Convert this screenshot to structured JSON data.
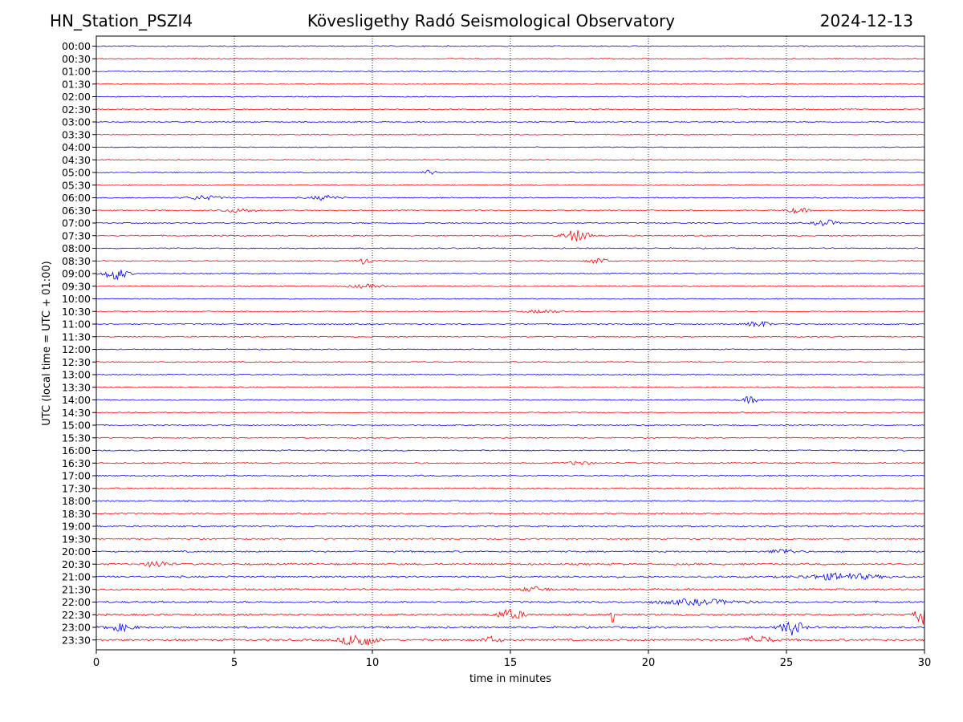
{
  "header": {
    "station": "HN_Station_PSZI4",
    "observatory": "Kövesligethy Radó Seismological Observatory",
    "date": "2024-12-13"
  },
  "chart_data": {
    "type": "line",
    "title": "Kövesligethy Radó Seismological Observatory",
    "xlabel": "time in minutes",
    "ylabel": "UTC (local time = UTC + 01:00)",
    "xlim": [
      0,
      30
    ],
    "x_ticks": [
      "0",
      "5",
      "10",
      "15",
      "20",
      "25",
      "30"
    ],
    "vertical_gridlines_at": [
      5,
      10,
      15,
      20,
      25
    ],
    "grid_style": "dotted",
    "row_colors": [
      "#0000ff",
      "#ff0000"
    ],
    "rows": [
      "00:00",
      "00:30",
      "01:00",
      "01:30",
      "02:00",
      "02:30",
      "03:00",
      "03:30",
      "04:00",
      "04:30",
      "05:00",
      "05:30",
      "06:00",
      "06:30",
      "07:00",
      "07:30",
      "08:00",
      "08:30",
      "09:00",
      "09:30",
      "10:00",
      "10:30",
      "11:00",
      "11:30",
      "12:00",
      "12:30",
      "13:00",
      "13:30",
      "14:00",
      "14:30",
      "15:00",
      "15:30",
      "16:00",
      "16:30",
      "17:00",
      "17:30",
      "18:00",
      "18:30",
      "19:00",
      "19:30",
      "20:00",
      "20:30",
      "21:00",
      "21:30",
      "22:00",
      "22:30",
      "23:00",
      "23:30"
    ],
    "noise_level": [
      0.8,
      0.8,
      0.7,
      0.7,
      0.7,
      0.8,
      0.7,
      0.7,
      0.6,
      0.7,
      0.7,
      0.7,
      0.8,
      0.8,
      0.8,
      0.9,
      0.8,
      0.8,
      0.8,
      0.8,
      0.7,
      0.8,
      0.8,
      0.8,
      0.7,
      0.8,
      0.8,
      0.8,
      0.8,
      0.8,
      0.8,
      0.8,
      0.9,
      0.9,
      1.0,
      1.0,
      1.0,
      1.0,
      1.0,
      1.0,
      1.1,
      1.3,
      1.3,
      1.3,
      1.4,
      1.4,
      1.4,
      1.5
    ],
    "events": [
      {
        "row": "05:00",
        "minute": 12.1,
        "amplitude": 3,
        "duration": 0.3
      },
      {
        "row": "06:00",
        "minute": 3.9,
        "amplitude": 2.5,
        "duration": 0.8
      },
      {
        "row": "06:00",
        "minute": 8.3,
        "amplitude": 3,
        "duration": 0.6
      },
      {
        "row": "06:30",
        "minute": 5.2,
        "amplitude": 2,
        "duration": 1.0
      },
      {
        "row": "06:30",
        "minute": 25.4,
        "amplitude": 3,
        "duration": 0.5
      },
      {
        "row": "07:00",
        "minute": 26.4,
        "amplitude": 4,
        "duration": 0.5
      },
      {
        "row": "07:30",
        "minute": 17.4,
        "amplitude": 7,
        "duration": 0.6
      },
      {
        "row": "08:30",
        "minute": 9.7,
        "amplitude": 4,
        "duration": 0.3
      },
      {
        "row": "08:30",
        "minute": 18.2,
        "amplitude": 4,
        "duration": 0.4
      },
      {
        "row": "09:00",
        "minute": 0.7,
        "amplitude": 8,
        "duration": 0.5
      },
      {
        "row": "09:30",
        "minute": 9.8,
        "amplitude": 2,
        "duration": 0.8
      },
      {
        "row": "10:30",
        "minute": 16.2,
        "amplitude": 2,
        "duration": 0.8
      },
      {
        "row": "11:00",
        "minute": 24.0,
        "amplitude": 4,
        "duration": 0.5
      },
      {
        "row": "14:00",
        "minute": 23.7,
        "amplitude": 4,
        "duration": 0.4
      },
      {
        "row": "16:30",
        "minute": 17.5,
        "amplitude": 2.5,
        "duration": 0.5
      },
      {
        "row": "20:00",
        "minute": 24.9,
        "amplitude": 3,
        "duration": 0.6
      },
      {
        "row": "20:30",
        "minute": 2.2,
        "amplitude": 4,
        "duration": 0.5
      },
      {
        "row": "21:00",
        "minute": 27.0,
        "amplitude": 4,
        "duration": 1.6
      },
      {
        "row": "21:30",
        "minute": 15.9,
        "amplitude": 3,
        "duration": 0.6
      },
      {
        "row": "22:00",
        "minute": 21.8,
        "amplitude": 3,
        "duration": 1.8
      },
      {
        "row": "22:30",
        "minute": 15.0,
        "amplitude": 6,
        "duration": 0.6
      },
      {
        "row": "22:30",
        "minute": 18.7,
        "amplitude": 16,
        "duration": 0.05
      },
      {
        "row": "22:30",
        "minute": 29.9,
        "amplitude": 12,
        "duration": 0.3
      },
      {
        "row": "23:00",
        "minute": 0.9,
        "amplitude": 4,
        "duration": 0.6
      },
      {
        "row": "23:00",
        "minute": 25.2,
        "amplitude": 9,
        "duration": 0.5
      },
      {
        "row": "23:30",
        "minute": 9.5,
        "amplitude": 9,
        "duration": 0.7
      },
      {
        "row": "23:30",
        "minute": 14.3,
        "amplitude": 4,
        "duration": 0.4
      },
      {
        "row": "23:30",
        "minute": 24.0,
        "amplitude": 5,
        "duration": 0.6
      }
    ]
  }
}
